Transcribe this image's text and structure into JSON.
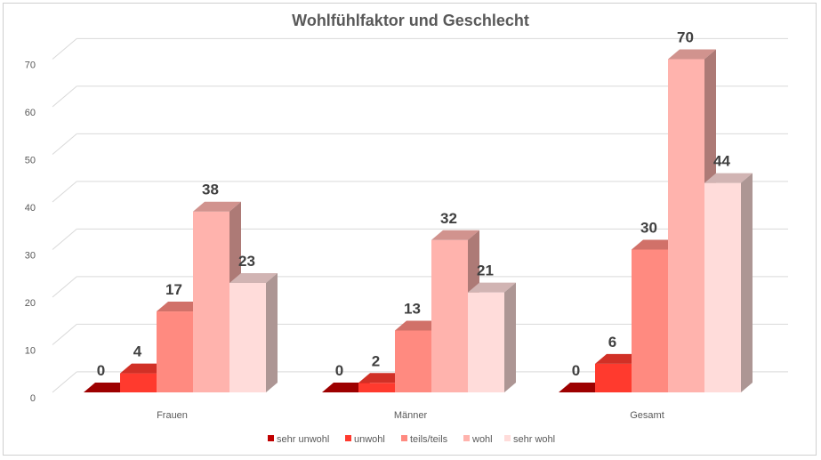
{
  "chart_data": {
    "type": "bar",
    "title": "Wohlfühlfaktor und Geschlecht",
    "categories": [
      "Frauen",
      "Männer",
      "Gesamt"
    ],
    "series": [
      {
        "name": "sehr unwohl",
        "values": [
          0,
          0,
          0
        ],
        "color": "#c00000"
      },
      {
        "name": "unwohl",
        "values": [
          4,
          2,
          6
        ],
        "color": "#ff3a2e"
      },
      {
        "name": "teils/teils",
        "values": [
          17,
          13,
          30
        ],
        "color": "#ff8a80"
      },
      {
        "name": "wohl",
        "values": [
          38,
          32,
          70
        ],
        "color": "#ffb3ad"
      },
      {
        "name": "sehr wohl",
        "values": [
          23,
          21,
          44
        ],
        "color": "#ffdcda"
      }
    ],
    "ylim": [
      0,
      70
    ],
    "yticks": [
      0,
      10,
      20,
      30,
      40,
      50,
      60,
      70
    ],
    "grid": true,
    "legend": "bottom",
    "style": "3d-clustered-column"
  }
}
